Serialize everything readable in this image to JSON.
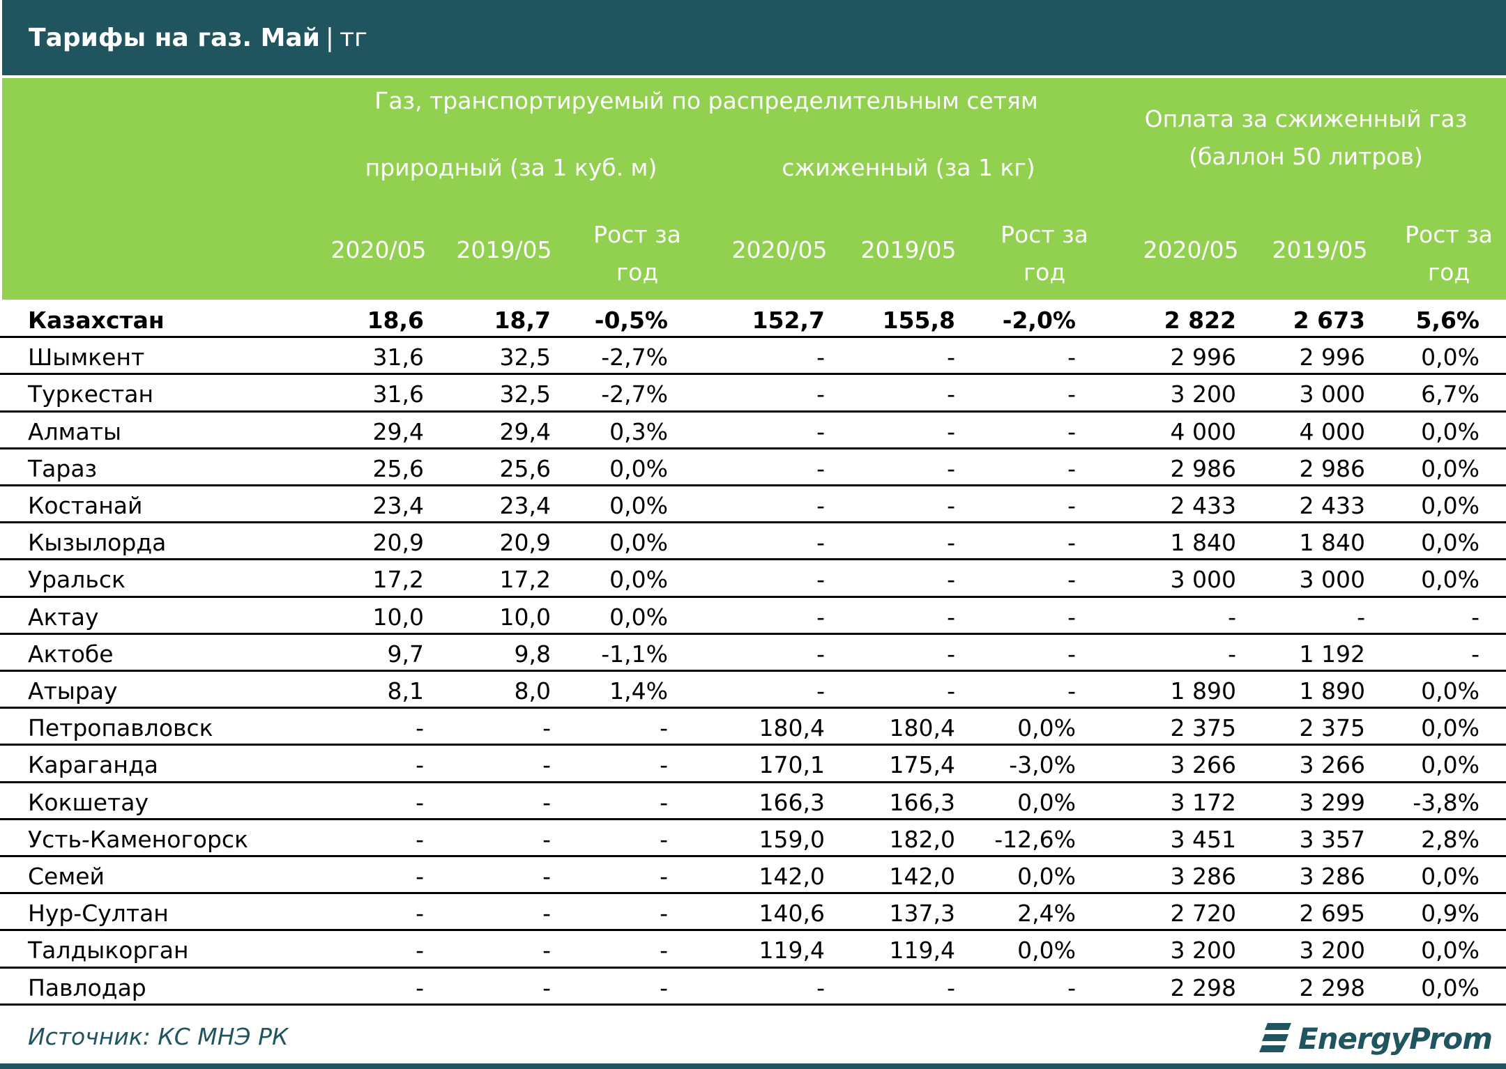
{
  "title": {
    "main": "Тарифы на газ. Май",
    "sep": "|",
    "unit": "тг"
  },
  "headers": {
    "group_distribution": "Газ, транспортируемый по распределительным сетям",
    "sub_natural": "природный (за 1 куб. м)",
    "sub_liquefied": "сжиженный (за 1 кг)",
    "group_cylinder": "Оплата за сжиженный газ (баллон 50 литров)",
    "col_2020": "2020/05",
    "col_2019": "2019/05",
    "col_growth": "Рост за год"
  },
  "chart_data": {
    "type": "table",
    "title": "Тарифы на газ. Май | тг",
    "columns": [
      "",
      "2020/05",
      "2019/05",
      "Рост за год",
      "2020/05",
      "2019/05",
      "Рост за год",
      "2020/05",
      "2019/05",
      "Рост за год"
    ],
    "rows": [
      [
        "Казахстан",
        "18,6",
        "18,7",
        "-0,5%",
        "152,7",
        "155,8",
        "-2,0%",
        "2 822",
        "2 673",
        "5,6%"
      ],
      [
        "Шымкент",
        "31,6",
        "32,5",
        "-2,7%",
        "-",
        "-",
        "-",
        "2 996",
        "2 996",
        "0,0%"
      ],
      [
        "Туркестан",
        "31,6",
        "32,5",
        "-2,7%",
        "-",
        "-",
        "-",
        "3 200",
        "3 000",
        "6,7%"
      ],
      [
        "Алматы",
        "29,4",
        "29,4",
        "0,3%",
        "-",
        "-",
        "-",
        "4 000",
        "4 000",
        "0,0%"
      ],
      [
        "Тараз",
        "25,6",
        "25,6",
        "0,0%",
        "-",
        "-",
        "-",
        "2 986",
        "2 986",
        "0,0%"
      ],
      [
        "Костанай",
        "23,4",
        "23,4",
        "0,0%",
        "-",
        "-",
        "-",
        "2 433",
        "2 433",
        "0,0%"
      ],
      [
        "Кызылорда",
        "20,9",
        "20,9",
        "0,0%",
        "-",
        "-",
        "-",
        "1 840",
        "1 840",
        "0,0%"
      ],
      [
        "Уральск",
        "17,2",
        "17,2",
        "0,0%",
        "-",
        "-",
        "-",
        "3 000",
        "3 000",
        "0,0%"
      ],
      [
        "Актау",
        "10,0",
        "10,0",
        "0,0%",
        "-",
        "-",
        "-",
        "-",
        "-",
        "-"
      ],
      [
        "Актобе",
        "9,7",
        "9,8",
        "-1,1%",
        "-",
        "-",
        "-",
        "-",
        "1 192",
        "-"
      ],
      [
        "Атырау",
        "8,1",
        "8,0",
        "1,4%",
        "-",
        "-",
        "-",
        "1 890",
        "1 890",
        "0,0%"
      ],
      [
        "Петропавловск",
        "-",
        "-",
        "-",
        "180,4",
        "180,4",
        "0,0%",
        "2 375",
        "2 375",
        "0,0%"
      ],
      [
        "Караганда",
        "-",
        "-",
        "-",
        "170,1",
        "175,4",
        "-3,0%",
        "3 266",
        "3 266",
        "0,0%"
      ],
      [
        "Кокшетау",
        "-",
        "-",
        "-",
        "166,3",
        "166,3",
        "0,0%",
        "3 172",
        "3 299",
        "-3,8%"
      ],
      [
        "Усть-Каменогорск",
        "-",
        "-",
        "-",
        "159,0",
        "182,0",
        "-12,6%",
        "3 451",
        "3 357",
        "2,8%"
      ],
      [
        "Семей",
        "-",
        "-",
        "-",
        "142,0",
        "142,0",
        "0,0%",
        "3 286",
        "3 286",
        "0,0%"
      ],
      [
        "Нур-Султан",
        "-",
        "-",
        "-",
        "140,6",
        "137,3",
        "2,4%",
        "2 720",
        "2 695",
        "0,9%"
      ],
      [
        "Талдыкорган",
        "-",
        "-",
        "-",
        "119,4",
        "119,4",
        "0,0%",
        "3 200",
        "3 200",
        "0,0%"
      ],
      [
        "Павлодар",
        "-",
        "-",
        "-",
        "-",
        "-",
        "-",
        "2 298",
        "2 298",
        "0,0%"
      ]
    ]
  },
  "footer": {
    "source": "Источник: КС МНЭ РК",
    "logo": "EnergyProm"
  },
  "colors": {
    "dark_teal": "#20545f",
    "green": "#92d050"
  }
}
